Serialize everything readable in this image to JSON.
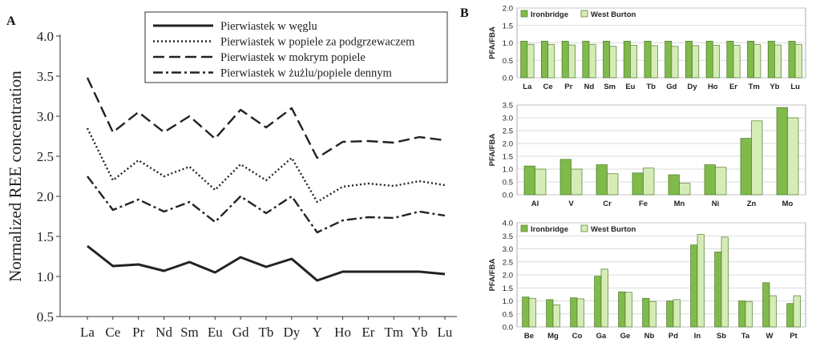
{
  "panel_a_label": "A",
  "panel_b_label": "B",
  "colors": {
    "green_dark": "#7fba4a",
    "green_light": "#d6ecb6",
    "line": "#222222",
    "grid": "#cfcfcf"
  },
  "chart_data": [
    {
      "type": "line",
      "panel": "A",
      "ylabel": "Normalized REE concentration",
      "xlabel": "",
      "ylim": [
        0.5,
        4.0
      ],
      "yticks": [
        "0.5",
        "1.0",
        "1.5",
        "2.0",
        "2.5",
        "3.0",
        "3.5",
        "4.0"
      ],
      "grid": false,
      "legend_position": "top-right",
      "categories": [
        "La",
        "Ce",
        "Pr",
        "Nd",
        "Sm",
        "Eu",
        "Gd",
        "Tb",
        "Dy",
        "Y",
        "Ho",
        "Er",
        "Tm",
        "Yb",
        "Lu"
      ],
      "series": [
        {
          "name": "Pierwiastek w węglu",
          "style": "solid",
          "values": [
            1.38,
            1.13,
            1.15,
            1.07,
            1.18,
            1.05,
            1.24,
            1.12,
            1.22,
            0.95,
            1.06,
            1.06,
            1.06,
            1.06,
            1.03
          ]
        },
        {
          "name": "Pierwiastek w popiele za podgrzewaczem",
          "style": "dotted",
          "values": [
            2.85,
            2.2,
            2.45,
            2.25,
            2.37,
            2.08,
            2.4,
            2.2,
            2.48,
            1.93,
            2.12,
            2.16,
            2.13,
            2.19,
            2.14
          ]
        },
        {
          "name": "Pierwiastek w mokrym popiele",
          "style": "dashed",
          "values": [
            3.48,
            2.8,
            3.05,
            2.8,
            3.0,
            2.72,
            3.08,
            2.86,
            3.1,
            2.48,
            2.68,
            2.69,
            2.67,
            2.74,
            2.7
          ]
        },
        {
          "name": "Pierwiastek w żużlu/popiele dennym",
          "style": "dashdot",
          "values": [
            2.25,
            1.83,
            1.96,
            1.81,
            1.93,
            1.68,
            2.0,
            1.79,
            2.0,
            1.55,
            1.7,
            1.74,
            1.73,
            1.81,
            1.76
          ]
        }
      ]
    },
    {
      "type": "bar",
      "panel": "B1",
      "ylabel": "PFA/FBA",
      "ylim": [
        0.0,
        2.0
      ],
      "yticks": [
        "0.0",
        "0.5",
        "1.0",
        "1.5",
        "2.0"
      ],
      "grid": true,
      "legend_position": "top-left",
      "categories": [
        "La",
        "Ce",
        "Pr",
        "Nd",
        "Sm",
        "Eu",
        "Tb",
        "Gd",
        "Dy",
        "Ho",
        "Er",
        "Tm",
        "Yb",
        "Lu"
      ],
      "series": [
        {
          "name": "Ironbridge",
          "values": [
            1.05,
            1.05,
            1.05,
            1.05,
            1.05,
            1.05,
            1.05,
            1.05,
            1.05,
            1.05,
            1.05,
            1.05,
            1.05,
            1.05
          ]
        },
        {
          "name": "West Burton",
          "values": [
            0.96,
            0.95,
            0.94,
            0.95,
            0.9,
            0.93,
            0.92,
            0.9,
            0.92,
            0.93,
            0.93,
            0.95,
            0.94,
            0.95
          ]
        }
      ]
    },
    {
      "type": "bar",
      "panel": "B2",
      "ylabel": "PFA/FBA",
      "ylim": [
        0.0,
        3.5
      ],
      "yticks": [
        "0.0",
        "0.5",
        "1.0",
        "1.5",
        "2.0",
        "2.5",
        "3.0",
        "3.5"
      ],
      "grid": true,
      "legend_position": "none",
      "categories": [
        "Al",
        "V",
        "Cr",
        "Fe",
        "Mn",
        "Ni",
        "Zn",
        "Mo"
      ],
      "series": [
        {
          "name": "Ironbridge",
          "values": [
            1.12,
            1.38,
            1.17,
            0.85,
            0.78,
            1.17,
            2.2,
            3.4
          ]
        },
        {
          "name": "West Burton",
          "values": [
            1.0,
            1.0,
            0.82,
            1.04,
            0.45,
            1.07,
            2.88,
            3.0
          ]
        }
      ]
    },
    {
      "type": "bar",
      "panel": "B3",
      "ylabel": "PFA/FBA",
      "ylim": [
        0.0,
        4.0
      ],
      "yticks": [
        "0.0",
        "0.5",
        "1.0",
        "1.5",
        "2.0",
        "2.5",
        "3.0",
        "3.5",
        "4.0"
      ],
      "grid": true,
      "legend_position": "top-left",
      "categories": [
        "Be",
        "Mg",
        "Co",
        "Ga",
        "Ge",
        "Nb",
        "Pd",
        "In",
        "Sb",
        "Ta",
        "W",
        "Pt"
      ],
      "series": [
        {
          "name": "Ironbridge",
          "values": [
            1.15,
            1.05,
            1.12,
            1.95,
            1.35,
            1.1,
            1.0,
            3.15,
            2.88,
            1.0,
            1.7,
            0.9
          ]
        },
        {
          "name": "West Burton",
          "values": [
            1.1,
            0.85,
            1.08,
            2.22,
            1.33,
            0.98,
            1.05,
            3.55,
            3.45,
            0.98,
            1.2,
            1.2
          ]
        }
      ]
    }
  ]
}
